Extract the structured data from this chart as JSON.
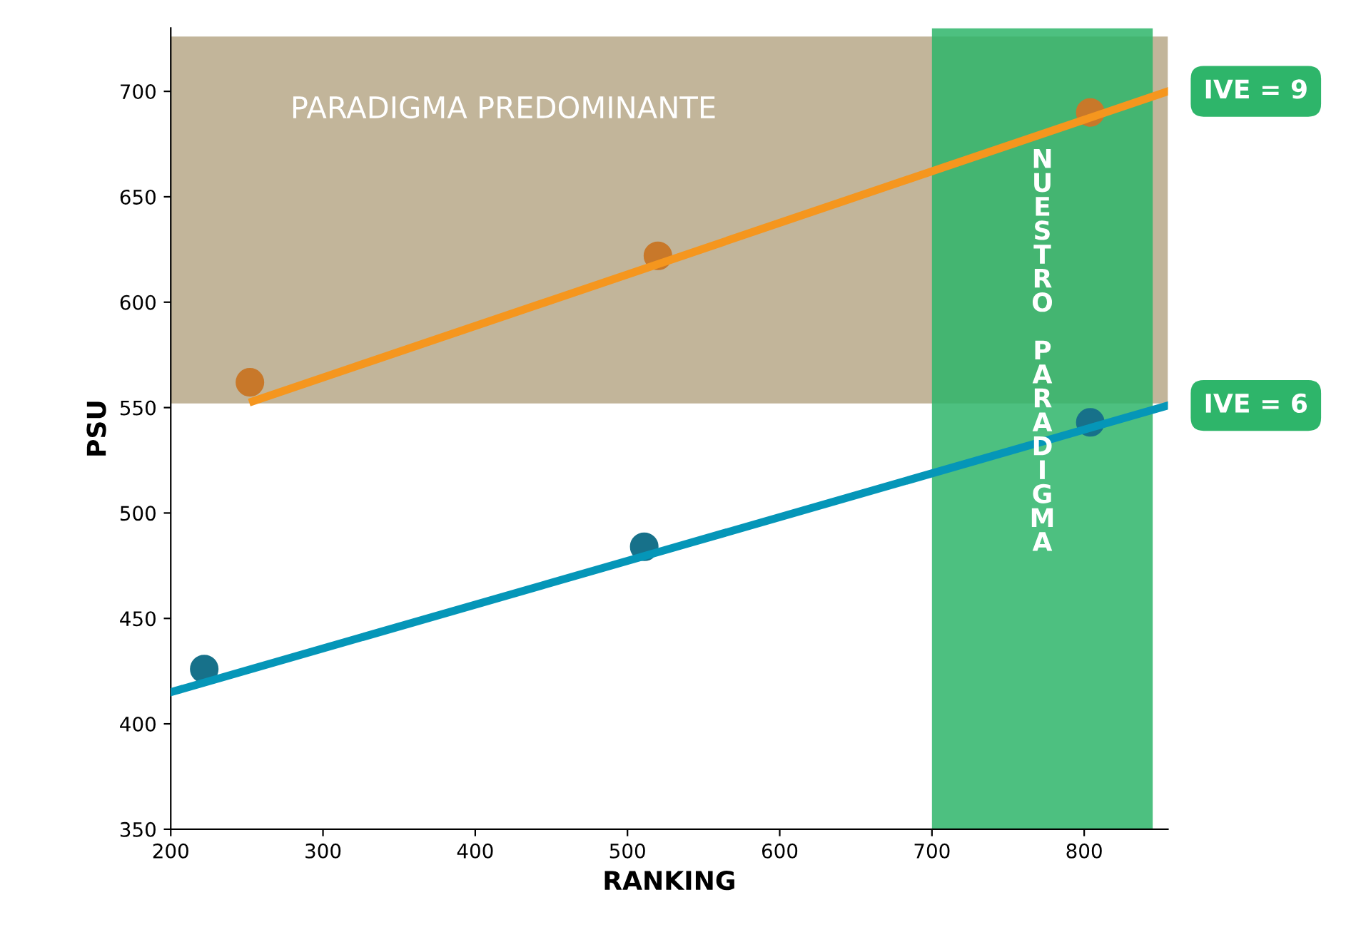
{
  "chart_data": {
    "type": "scatter",
    "xlabel": "RANKING",
    "ylabel": "PSU",
    "xlim": [
      200,
      855
    ],
    "ylim": [
      350,
      730
    ],
    "xticks": [
      200,
      300,
      400,
      500,
      600,
      700,
      800
    ],
    "yticks": [
      350,
      400,
      450,
      500,
      550,
      600,
      650,
      700
    ],
    "grid": false,
    "series": [
      {
        "color": "#c8782a",
        "marker": "circle",
        "x": [
          252,
          520,
          804
        ],
        "values": [
          562,
          622,
          690
        ]
      },
      {
        "color": "#17718a",
        "marker": "circle",
        "x": [
          222,
          511,
          804
        ],
        "values": [
          426,
          484,
          543
        ]
      },
      {
        "type": "line",
        "color": "#f5961e",
        "x": [
          254,
          855
        ],
        "values": [
          553,
          700
        ]
      },
      {
        "type": "line",
        "color": "#0596b8",
        "x": [
          200,
          855
        ],
        "values": [
          415,
          551
        ]
      }
    ],
    "bands": [
      {
        "axis": "y",
        "from": 552,
        "to": 726,
        "label": "PARADIGMA PREDOMINANTE",
        "color": "#a8956f"
      },
      {
        "axis": "x",
        "from": 700,
        "to": 845,
        "label": "NUESTRO PARADIGMA",
        "color": "#2eb56a"
      }
    ],
    "annotations": [
      {
        "text": "IVE = 9",
        "x": 855,
        "y": 700
      },
      {
        "text": "IVE = 6",
        "x": 855,
        "y": 551
      }
    ]
  }
}
